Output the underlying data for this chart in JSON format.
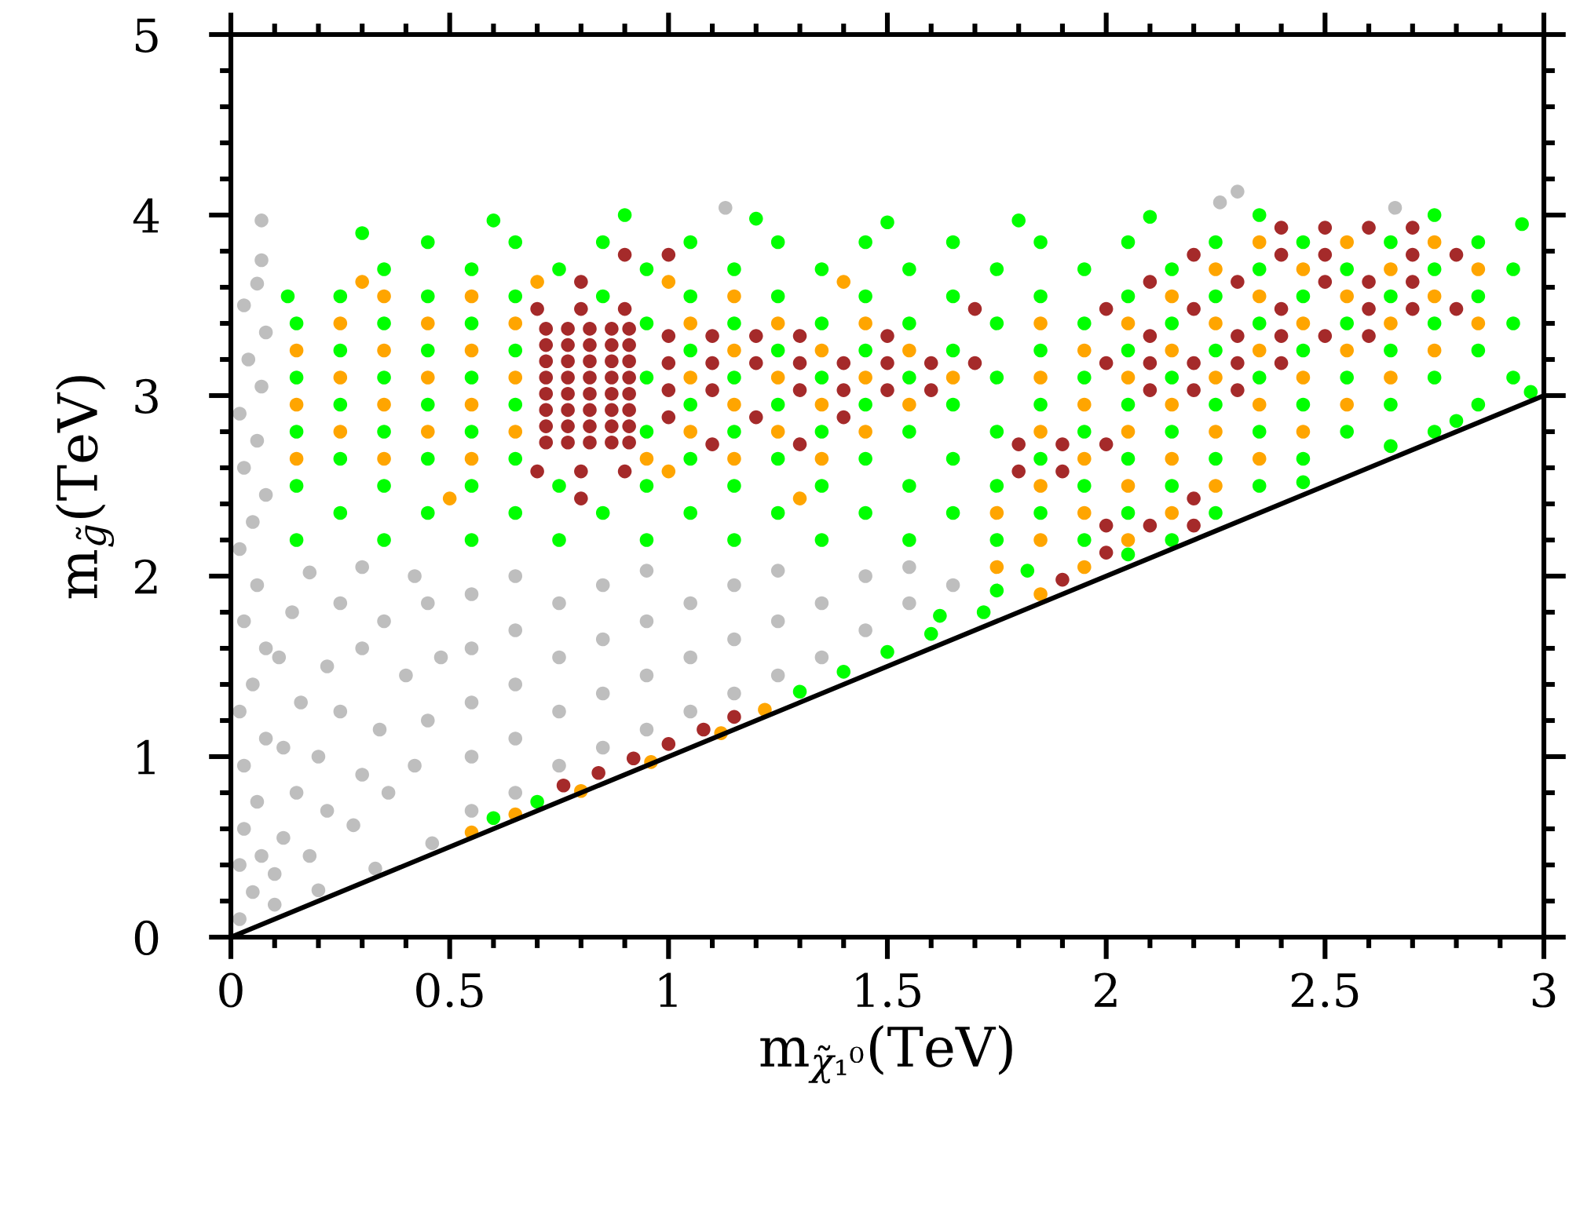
{
  "chart_data": {
    "type": "scatter",
    "xlabel": "m$_{χ̃₁⁰}$(TeV)",
    "ylabel": "m$_{g̃}$(TeV)",
    "xlim": [
      0,
      3
    ],
    "ylim": [
      0,
      5
    ],
    "marker": "circle",
    "xticks": [
      0,
      {
        "value": 0.1,
        "label": null
      },
      {
        "value": 0.2,
        "label": null
      },
      {
        "value": 0.3,
        "label": null
      },
      {
        "value": 0.4,
        "label": null
      },
      0.5,
      {
        "value": 0.6,
        "label": null
      },
      {
        "value": 0.7,
        "label": null
      },
      {
        "value": 0.8,
        "label": null
      },
      {
        "value": 0.9,
        "label": null
      },
      1,
      {
        "value": 1.1,
        "label": null
      },
      {
        "value": 1.2,
        "label": null
      },
      {
        "value": 1.3,
        "label": null
      },
      {
        "value": 1.4,
        "label": null
      },
      1.5,
      {
        "value": 1.6,
        "label": null
      },
      {
        "value": 1.7,
        "label": null
      },
      {
        "value": 1.8,
        "label": null
      },
      {
        "value": 1.9,
        "label": null
      },
      2,
      {
        "value": 2.1,
        "label": null
      },
      {
        "value": 2.2,
        "label": null
      },
      {
        "value": 2.3,
        "label": null
      },
      {
        "value": 2.4,
        "label": null
      },
      2.5,
      {
        "value": 2.6,
        "label": null
      },
      {
        "value": 2.7,
        "label": null
      },
      {
        "value": 2.8,
        "label": null
      },
      {
        "value": 2.9,
        "label": null
      },
      3
    ],
    "yticks": [
      0,
      {
        "value": 0.2,
        "label": null
      },
      {
        "value": 0.4,
        "label": null
      },
      {
        "value": 0.6,
        "label": null
      },
      {
        "value": 0.8,
        "label": null
      },
      1,
      {
        "value": 1.2,
        "label": null
      },
      {
        "value": 1.4,
        "label": null
      },
      {
        "value": 1.6,
        "label": null
      },
      {
        "value": 1.8,
        "label": null
      },
      2,
      {
        "value": 2.2,
        "label": null
      },
      {
        "value": 2.4,
        "label": null
      },
      {
        "value": 2.6,
        "label": null
      },
      {
        "value": 2.8,
        "label": null
      },
      3,
      {
        "value": 3.2,
        "label": null
      },
      {
        "value": 3.4,
        "label": null
      },
      {
        "value": 3.6,
        "label": null
      },
      {
        "value": 3.8,
        "label": null
      },
      4,
      {
        "value": 4.2,
        "label": null
      },
      {
        "value": 4.4,
        "label": null
      },
      {
        "value": 4.6,
        "label": null
      },
      {
        "value": 4.8,
        "label": null
      },
      5
    ],
    "series": [
      {
        "color": "#bebebe",
        "x": [
          0.02,
          0.05,
          0.02,
          0.07,
          0.03,
          0.06,
          0.03,
          0.08,
          0.02,
          0.05,
          0.08,
          0.03,
          0.06,
          0.02,
          0.05,
          0.08,
          0.03,
          0.06,
          0.02,
          0.07,
          0.04,
          0.08,
          0.03,
          0.06,
          0.07,
          0.07,
          0.12,
          0.18,
          0.15,
          0.22,
          0.28,
          0.12,
          0.2,
          0.3,
          0.36,
          0.42,
          0.16,
          0.25,
          0.34,
          0.45,
          0.11,
          0.22,
          0.3,
          0.4,
          0.48,
          0.14,
          0.25,
          0.35,
          0.45,
          0.18,
          0.3,
          0.42,
          0.1,
          0.2,
          0.33,
          0.46,
          0.1,
          0.55,
          0.55,
          0.55,
          0.55,
          0.55,
          0.65,
          0.65,
          0.65,
          0.65,
          0.65,
          0.75,
          0.75,
          0.75,
          0.75,
          0.85,
          0.85,
          0.85,
          0.85,
          0.95,
          0.95,
          0.95,
          0.95,
          1.05,
          1.05,
          1.05,
          1.15,
          1.15,
          1.15,
          1.25,
          1.25,
          1.25,
          1.35,
          1.35,
          1.45,
          1.45,
          1.55,
          1.55,
          1.65,
          1.13,
          2.3,
          2.26,
          2.66
        ],
        "values": [
          0.1,
          0.25,
          0.4,
          0.45,
          0.6,
          0.75,
          0.95,
          1.1,
          1.25,
          1.4,
          1.6,
          1.75,
          1.95,
          2.15,
          2.3,
          2.45,
          2.6,
          2.75,
          2.9,
          3.05,
          3.2,
          3.35,
          3.5,
          3.62,
          3.75,
          3.97,
          0.55,
          0.45,
          0.8,
          0.7,
          0.62,
          1.05,
          1.0,
          0.9,
          0.8,
          0.95,
          1.3,
          1.25,
          1.15,
          1.2,
          1.55,
          1.5,
          1.6,
          1.45,
          1.55,
          1.8,
          1.85,
          1.75,
          1.85,
          2.02,
          2.05,
          2.0,
          0.18,
          0.26,
          0.38,
          0.52,
          0.35,
          0.7,
          1.0,
          1.3,
          1.6,
          1.9,
          0.8,
          1.1,
          1.4,
          1.7,
          2.0,
          0.95,
          1.25,
          1.55,
          1.85,
          1.05,
          1.35,
          1.65,
          1.95,
          1.15,
          1.45,
          1.75,
          2.03,
          1.25,
          1.55,
          1.85,
          1.35,
          1.65,
          1.95,
          1.45,
          1.75,
          2.03,
          1.55,
          1.85,
          1.7,
          2.0,
          1.85,
          2.05,
          1.95,
          4.04,
          4.13,
          4.07,
          4.04
        ]
      },
      {
        "color": "#00ff00",
        "x": [
          0.15,
          0.35,
          0.55,
          0.75,
          0.95,
          1.15,
          1.35,
          1.55,
          1.75,
          1.95,
          2.15,
          0.15,
          0.35,
          0.55,
          0.75,
          0.95,
          1.15,
          1.35,
          1.55,
          1.75,
          1.95,
          2.15,
          2.35,
          0.15,
          0.35,
          0.55,
          0.95,
          1.15,
          1.35,
          1.55,
          1.75,
          1.95,
          2.15,
          2.35,
          2.55,
          2.75,
          0.15,
          0.35,
          0.55,
          0.95,
          1.15,
          1.35,
          1.55,
          1.75,
          1.95,
          2.15,
          2.35,
          2.55,
          2.75,
          2.93,
          0.15,
          0.35,
          0.55,
          0.95,
          1.15,
          1.35,
          1.55,
          1.75,
          1.95,
          2.15,
          2.35,
          2.55,
          2.75,
          2.93,
          0.35,
          0.55,
          0.75,
          0.95,
          1.15,
          1.35,
          1.55,
          1.75,
          1.95,
          2.15,
          2.35,
          2.55,
          2.75,
          2.93,
          0.25,
          0.45,
          0.65,
          0.85,
          1.05,
          1.25,
          1.45,
          1.65,
          1.85,
          2.05,
          2.25,
          0.25,
          0.45,
          0.65,
          1.05,
          1.25,
          1.45,
          1.65,
          1.85,
          2.05,
          2.25,
          2.45,
          0.25,
          0.45,
          0.65,
          1.05,
          1.25,
          1.45,
          1.65,
          1.85,
          2.05,
          2.25,
          2.45,
          2.65,
          2.85,
          0.25,
          0.45,
          0.65,
          1.05,
          1.25,
          1.45,
          1.65,
          1.85,
          2.05,
          2.25,
          2.45,
          2.65,
          2.85,
          0.25,
          0.45,
          0.65,
          0.85,
          1.05,
          1.25,
          1.45,
          1.65,
          1.85,
          2.05,
          2.25,
          2.45,
          2.65,
          2.85,
          0.45,
          0.65,
          0.85,
          1.05,
          1.25,
          1.45,
          1.65,
          1.85,
          2.05,
          2.25,
          2.45,
          2.65,
          2.85,
          0.3,
          0.6,
          0.9,
          1.2,
          1.5,
          1.8,
          2.1,
          2.35,
          2.75,
          2.95,
          0.13,
          2.05,
          2.45,
          2.65,
          2.8,
          2.97,
          0.6,
          0.7,
          1.3,
          1.4,
          1.5,
          1.6,
          1.62,
          1.72,
          1.75,
          1.82
        ],
        "values": [
          2.2,
          2.2,
          2.2,
          2.2,
          2.2,
          2.2,
          2.2,
          2.2,
          2.2,
          2.2,
          2.2,
          2.5,
          2.5,
          2.5,
          2.5,
          2.5,
          2.5,
          2.5,
          2.5,
          2.5,
          2.5,
          2.5,
          2.5,
          2.8,
          2.8,
          2.8,
          2.8,
          2.8,
          2.8,
          2.8,
          2.8,
          2.8,
          2.8,
          2.8,
          2.8,
          2.8,
          3.1,
          3.1,
          3.1,
          3.1,
          3.1,
          3.1,
          3.1,
          3.1,
          3.1,
          3.1,
          3.1,
          3.1,
          3.1,
          3.1,
          3.4,
          3.4,
          3.4,
          3.4,
          3.4,
          3.4,
          3.4,
          3.4,
          3.4,
          3.4,
          3.4,
          3.4,
          3.4,
          3.4,
          3.7,
          3.7,
          3.7,
          3.7,
          3.7,
          3.7,
          3.7,
          3.7,
          3.7,
          3.7,
          3.7,
          3.7,
          3.7,
          3.7,
          2.35,
          2.35,
          2.35,
          2.35,
          2.35,
          2.35,
          2.35,
          2.35,
          2.35,
          2.35,
          2.35,
          2.65,
          2.65,
          2.65,
          2.65,
          2.65,
          2.65,
          2.65,
          2.65,
          2.65,
          2.65,
          2.65,
          2.95,
          2.95,
          2.95,
          2.95,
          2.95,
          2.95,
          2.95,
          2.95,
          2.95,
          2.95,
          2.95,
          2.95,
          2.95,
          3.25,
          3.25,
          3.25,
          3.25,
          3.25,
          3.25,
          3.25,
          3.25,
          3.25,
          3.25,
          3.25,
          3.25,
          3.25,
          3.55,
          3.55,
          3.55,
          3.55,
          3.55,
          3.55,
          3.55,
          3.55,
          3.55,
          3.55,
          3.55,
          3.55,
          3.55,
          3.55,
          3.85,
          3.85,
          3.85,
          3.85,
          3.85,
          3.85,
          3.85,
          3.85,
          3.85,
          3.85,
          3.85,
          3.85,
          3.85,
          3.9,
          3.97,
          4.0,
          3.98,
          3.96,
          3.97,
          3.99,
          4.0,
          4.0,
          3.95,
          3.55,
          2.12,
          2.52,
          2.72,
          2.86,
          3.02,
          0.66,
          0.75,
          1.36,
          1.47,
          1.58,
          1.68,
          1.78,
          1.8,
          1.92,
          2.03
        ]
      },
      {
        "color": "#ffa500",
        "x": [
          0.15,
          0.35,
          0.55,
          0.95,
          1.15,
          1.35,
          0.25,
          0.45,
          0.65,
          1.05,
          1.25,
          1.45,
          0.15,
          0.35,
          0.55,
          1.15,
          1.35,
          1.55,
          0.25,
          0.45,
          0.65,
          1.05,
          1.25,
          1.45,
          1.65,
          0.15,
          0.35,
          0.55,
          1.15,
          1.35,
          1.55,
          0.25,
          0.45,
          0.65,
          1.05,
          1.25,
          1.45,
          0.35,
          0.55,
          1.15,
          0.5,
          1.0,
          1.3,
          0.3,
          0.7,
          1.0,
          1.4,
          1.85,
          1.85,
          1.85,
          1.85,
          1.85,
          1.95,
          1.95,
          1.95,
          1.95,
          2.05,
          2.05,
          2.05,
          2.05,
          2.05,
          2.15,
          2.15,
          2.15,
          2.15,
          2.15,
          2.25,
          2.25,
          2.25,
          2.25,
          2.25,
          2.35,
          2.35,
          2.35,
          2.35,
          2.35,
          2.45,
          2.45,
          2.45,
          2.45,
          2.55,
          2.55,
          2.55,
          2.55,
          2.65,
          2.65,
          2.65,
          2.75,
          2.75,
          2.75,
          2.85,
          2.85,
          1.75,
          1.85,
          1.95,
          1.75,
          0.55,
          0.65,
          0.8,
          0.96,
          1.12,
          1.22
        ],
        "values": [
          2.65,
          2.65,
          2.65,
          2.65,
          2.65,
          2.65,
          2.8,
          2.8,
          2.8,
          2.8,
          2.8,
          2.8,
          2.95,
          2.95,
          2.95,
          2.95,
          2.95,
          2.95,
          3.1,
          3.1,
          3.1,
          3.1,
          3.1,
          3.1,
          3.1,
          3.25,
          3.25,
          3.25,
          3.25,
          3.25,
          3.25,
          3.4,
          3.4,
          3.4,
          3.4,
          3.4,
          3.4,
          3.55,
          3.55,
          3.55,
          2.43,
          2.58,
          2.43,
          3.63,
          3.63,
          3.63,
          3.63,
          2.2,
          2.5,
          2.8,
          3.1,
          3.4,
          2.35,
          2.65,
          2.95,
          3.25,
          2.2,
          2.5,
          2.8,
          3.1,
          3.4,
          2.35,
          2.65,
          2.95,
          3.25,
          3.55,
          2.5,
          2.8,
          3.1,
          3.4,
          3.7,
          2.65,
          2.95,
          3.25,
          3.55,
          3.85,
          2.8,
          3.1,
          3.4,
          3.7,
          2.95,
          3.25,
          3.55,
          3.85,
          3.1,
          3.4,
          3.7,
          3.25,
          3.55,
          3.85,
          3.4,
          3.7,
          2.05,
          1.9,
          2.05,
          2.35,
          0.58,
          0.68,
          0.81,
          0.97,
          1.13,
          1.26
        ]
      },
      {
        "color": "#a52a2a",
        "x": [
          0.72,
          0.77,
          0.82,
          0.87,
          0.91,
          0.72,
          0.77,
          0.82,
          0.87,
          0.91,
          0.72,
          0.77,
          0.82,
          0.87,
          0.91,
          0.72,
          0.77,
          0.82,
          0.87,
          0.91,
          0.72,
          0.77,
          0.82,
          0.87,
          0.91,
          0.72,
          0.77,
          0.82,
          0.87,
          0.91,
          0.72,
          0.77,
          0.82,
          0.87,
          0.91,
          0.72,
          0.77,
          0.82,
          0.87,
          0.91,
          0.7,
          0.8,
          0.9,
          0.8,
          0.9,
          1.0,
          0.7,
          0.8,
          0.9,
          0.8,
          1.0,
          1.0,
          1.1,
          1.1,
          1.2,
          1.2,
          1.3,
          1.3,
          1.4,
          1.4,
          1.5,
          1.5,
          1.6,
          1.7,
          1.0,
          1.1,
          1.2,
          1.3,
          1.4,
          1.6,
          1.5,
          1.0,
          1.1,
          1.3,
          1.7,
          2.0,
          2.0,
          2.1,
          2.1,
          2.1,
          2.1,
          2.2,
          2.2,
          2.2,
          2.2,
          2.3,
          2.3,
          2.3,
          2.3,
          2.4,
          2.4,
          2.4,
          2.4,
          2.4,
          2.5,
          2.5,
          2.5,
          2.5,
          2.6,
          2.6,
          2.6,
          2.6,
          2.7,
          2.7,
          2.7,
          2.7,
          2.8,
          2.8,
          1.9,
          2.0,
          2.1,
          2.0,
          2.2,
          2.2,
          1.8,
          1.8,
          1.9,
          1.9,
          2.0,
          0.76,
          0.84,
          0.92,
          1.0,
          1.08,
          1.15
        ],
        "values": [
          2.74,
          2.74,
          2.74,
          2.74,
          2.74,
          2.83,
          2.83,
          2.83,
          2.83,
          2.83,
          2.92,
          2.92,
          2.92,
          2.92,
          2.92,
          3.01,
          3.01,
          3.01,
          3.01,
          3.01,
          3.1,
          3.1,
          3.1,
          3.1,
          3.1,
          3.19,
          3.19,
          3.19,
          3.19,
          3.19,
          3.28,
          3.28,
          3.28,
          3.28,
          3.28,
          3.37,
          3.37,
          3.37,
          3.37,
          3.37,
          3.48,
          3.48,
          3.48,
          3.63,
          3.78,
          3.78,
          2.58,
          2.58,
          2.58,
          2.43,
          2.88,
          3.18,
          3.03,
          3.33,
          2.88,
          3.18,
          3.03,
          3.33,
          2.88,
          3.18,
          3.03,
          3.33,
          3.18,
          3.48,
          3.03,
          2.73,
          3.33,
          2.73,
          3.03,
          3.03,
          3.18,
          3.33,
          3.18,
          3.18,
          3.18,
          3.18,
          3.48,
          3.03,
          3.18,
          3.33,
          3.63,
          3.03,
          3.18,
          3.48,
          3.78,
          3.03,
          3.18,
          3.33,
          3.63,
          3.18,
          3.33,
          3.48,
          3.78,
          3.93,
          3.33,
          3.63,
          3.78,
          3.93,
          3.33,
          3.48,
          3.63,
          3.93,
          3.48,
          3.63,
          3.78,
          3.93,
          3.48,
          3.78,
          1.98,
          2.13,
          2.28,
          2.28,
          2.28,
          2.43,
          2.58,
          2.73,
          2.58,
          2.73,
          2.73,
          0.84,
          0.91,
          0.99,
          1.07,
          1.15,
          1.22
        ]
      },
      {
        "type": "line",
        "marker": "none",
        "color": "#000000",
        "x": [
          0,
          3
        ],
        "values": [
          0,
          3
        ]
      }
    ]
  }
}
